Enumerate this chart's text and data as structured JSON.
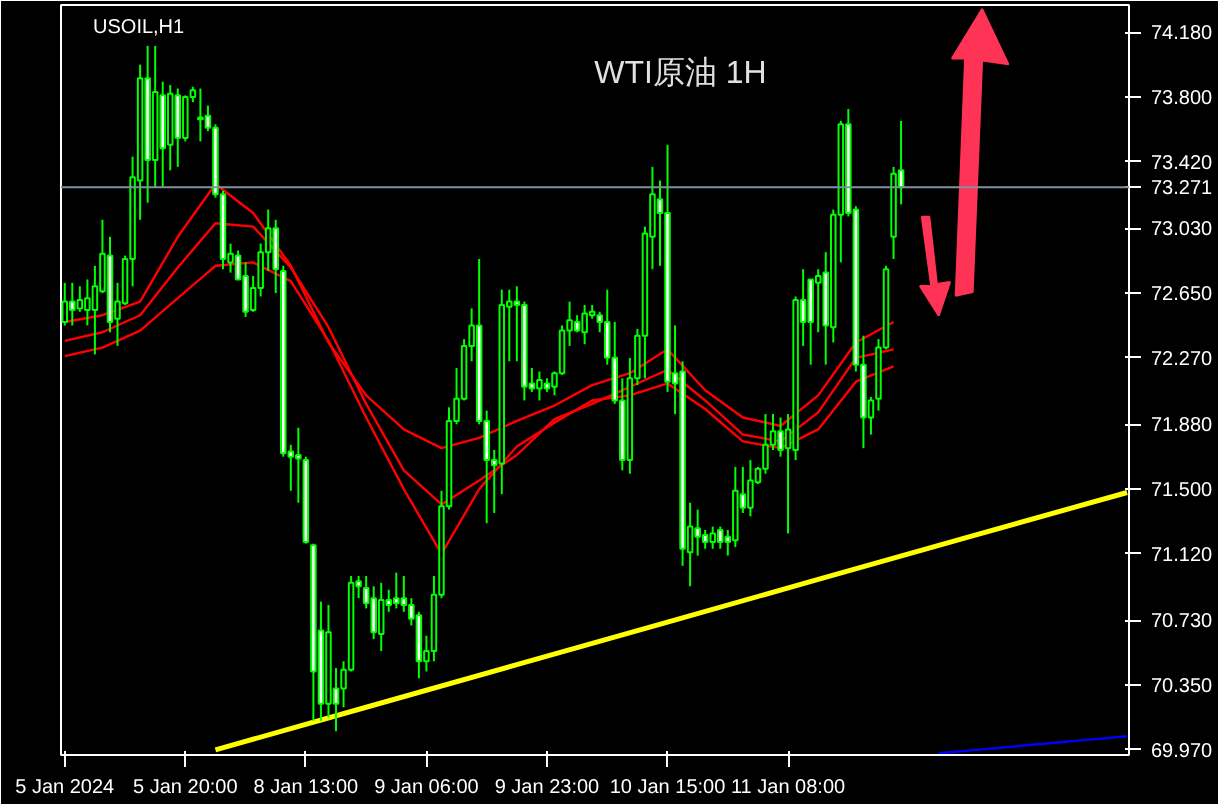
{
  "chart_data": {
    "type": "candlestick",
    "title": "WTI原油 1H",
    "subtitle": "USOIL,H1",
    "categories": [
      "5 Jan 2024",
      null,
      null,
      null,
      null,
      null,
      null,
      null,
      null,
      null,
      null,
      null,
      null,
      null,
      null,
      null,
      "5 Jan 20:00",
      null,
      null,
      null,
      null,
      null,
      null,
      null,
      null,
      null,
      null,
      null,
      null,
      null,
      null,
      null,
      "8 Jan 13:00",
      null,
      null,
      null,
      null,
      null,
      null,
      null,
      null,
      null,
      null,
      null,
      null,
      null,
      null,
      null,
      "9 Jan 06:00",
      null,
      null,
      null,
      null,
      null,
      null,
      null,
      null,
      null,
      null,
      null,
      null,
      null,
      null,
      null,
      "9 Jan 23:00",
      null,
      null,
      null,
      null,
      null,
      null,
      null,
      null,
      null,
      null,
      null,
      null,
      null,
      null,
      null,
      "10 Jan 15:00",
      null,
      null,
      null,
      null,
      null,
      null,
      null,
      null,
      null,
      null,
      null,
      null,
      null,
      null,
      null,
      "11 Jan 08:00",
      null,
      null,
      null,
      null,
      null,
      null,
      null,
      null,
      null,
      null,
      null,
      null,
      null,
      null,
      null,
      null,
      null,
      null,
      null,
      null,
      null,
      null,
      null,
      null,
      null,
      null,
      null,
      null,
      null,
      null,
      null,
      null,
      null,
      null,
      null,
      null,
      null,
      null,
      null,
      null,
      null,
      null,
      null,
      null,
      null
    ],
    "series": [
      {
        "color": "#00ff00",
        "ohlc": [
          [
            72.48,
            72.71,
            72.46,
            72.6
          ],
          [
            72.6,
            72.71,
            72.46,
            72.55
          ],
          [
            72.56,
            72.69,
            72.54,
            72.61
          ],
          [
            72.55,
            72.73,
            72.46,
            72.62
          ],
          [
            72.55,
            72.81,
            72.29,
            72.69
          ],
          [
            72.66,
            73.08,
            72.65,
            72.88
          ],
          [
            72.87,
            72.98,
            72.42,
            72.48
          ],
          [
            72.5,
            72.71,
            72.34,
            72.6
          ],
          [
            72.59,
            72.87,
            72.58,
            72.85
          ],
          [
            72.85,
            73.45,
            72.69,
            73.33
          ],
          [
            73.31,
            73.99,
            73.08,
            73.91
          ],
          [
            73.91,
            74.1,
            73.18,
            73.43
          ],
          [
            73.43,
            74.1,
            73.27,
            73.83
          ],
          [
            73.81,
            73.89,
            73.27,
            73.5
          ],
          [
            73.52,
            73.87,
            73.37,
            73.82
          ],
          [
            73.81,
            73.85,
            73.39,
            73.56
          ],
          [
            73.56,
            73.81,
            73.54,
            73.8
          ],
          [
            73.8,
            73.86,
            73.77,
            73.84
          ],
          [
            73.68,
            73.85,
            73.54,
            73.67
          ],
          [
            73.69,
            73.75,
            73.6,
            73.62
          ],
          [
            73.62,
            73.64,
            73.21,
            73.23
          ],
          [
            73.23,
            73.25,
            72.79,
            72.85
          ],
          [
            72.83,
            72.94,
            72.77,
            72.88
          ],
          [
            72.87,
            72.9,
            72.73,
            72.73
          ],
          [
            72.75,
            72.83,
            72.51,
            72.54
          ],
          [
            72.55,
            72.75,
            72.54,
            72.68
          ],
          [
            72.68,
            72.94,
            72.63,
            72.89
          ],
          [
            72.89,
            73.14,
            72.78,
            73.03
          ],
          [
            73.03,
            73.08,
            72.65,
            72.79
          ],
          [
            72.78,
            72.81,
            71.69,
            71.71
          ],
          [
            71.72,
            71.76,
            71.49,
            71.69
          ],
          [
            71.7,
            71.86,
            71.42,
            71.68
          ],
          [
            71.67,
            71.69,
            71.18,
            71.19
          ],
          [
            71.17,
            71.18,
            70.14,
            70.43
          ],
          [
            70.67,
            70.84,
            70.14,
            70.24
          ],
          [
            70.24,
            70.82,
            70.16,
            70.66
          ],
          [
            70.33,
            70.45,
            70.08,
            70.24
          ],
          [
            70.33,
            70.49,
            70.22,
            70.44
          ],
          [
            70.44,
            70.99,
            70.43,
            70.95
          ],
          [
            70.96,
            70.99,
            70.86,
            70.93
          ],
          [
            70.92,
            70.99,
            70.8,
            70.83
          ],
          [
            70.86,
            70.93,
            70.62,
            70.66
          ],
          [
            70.65,
            70.95,
            70.55,
            70.85
          ],
          [
            70.85,
            70.91,
            70.78,
            70.82
          ],
          [
            70.86,
            71.01,
            70.8,
            70.83
          ],
          [
            70.86,
            70.99,
            70.78,
            70.82
          ],
          [
            70.82,
            70.86,
            70.7,
            70.74
          ],
          [
            70.76,
            70.78,
            70.39,
            70.49
          ],
          [
            70.49,
            70.64,
            70.43,
            70.55
          ],
          [
            70.55,
            70.99,
            70.49,
            70.88
          ],
          [
            70.88,
            71.49,
            70.86,
            71.4
          ],
          [
            71.4,
            71.98,
            71.38,
            71.9
          ],
          [
            71.9,
            72.21,
            71.88,
            72.03
          ],
          [
            72.03,
            72.38,
            72.02,
            72.34
          ],
          [
            72.34,
            72.56,
            72.25,
            72.46
          ],
          [
            72.46,
            72.85,
            71.88,
            71.9
          ],
          [
            71.9,
            71.96,
            71.3,
            71.67
          ],
          [
            71.67,
            71.73,
            71.36,
            71.64
          ],
          [
            71.65,
            72.67,
            71.47,
            72.58
          ],
          [
            72.57,
            72.67,
            72.25,
            72.6
          ],
          [
            72.6,
            72.69,
            72.25,
            72.58
          ],
          [
            72.58,
            72.6,
            72.02,
            72.1
          ],
          [
            72.12,
            72.21,
            72.07,
            72.09
          ],
          [
            72.09,
            72.19,
            72.02,
            72.14
          ],
          [
            72.12,
            72.15,
            72.07,
            72.09
          ],
          [
            72.1,
            72.19,
            72.05,
            72.18
          ],
          [
            72.18,
            72.46,
            72.17,
            72.43
          ],
          [
            72.43,
            72.6,
            72.34,
            72.49
          ],
          [
            72.48,
            72.52,
            72.42,
            72.43
          ],
          [
            72.42,
            72.58,
            72.35,
            72.53
          ],
          [
            72.52,
            72.58,
            72.5,
            72.54
          ],
          [
            72.52,
            72.54,
            72.42,
            72.48
          ],
          [
            72.48,
            72.67,
            72.23,
            72.27
          ],
          [
            72.27,
            72.48,
            72.0,
            72.02
          ],
          [
            72.02,
            72.15,
            71.61,
            71.67
          ],
          [
            71.67,
            72.27,
            71.59,
            72.15
          ],
          [
            72.15,
            72.44,
            72.11,
            72.4
          ],
          [
            72.4,
            73.04,
            72.15,
            73.0
          ],
          [
            72.98,
            73.39,
            72.79,
            73.23
          ],
          [
            73.2,
            73.31,
            72.81,
            73.12
          ],
          [
            73.12,
            73.52,
            72.07,
            72.13
          ],
          [
            72.18,
            72.46,
            71.94,
            72.12
          ],
          [
            72.19,
            72.25,
            71.05,
            71.15
          ],
          [
            71.13,
            71.42,
            70.93,
            71.28
          ],
          [
            71.27,
            71.38,
            71.11,
            71.22
          ],
          [
            71.23,
            71.26,
            71.15,
            71.19
          ],
          [
            71.19,
            71.28,
            71.15,
            71.24
          ],
          [
            71.26,
            71.28,
            71.15,
            71.19
          ],
          [
            71.22,
            71.26,
            71.11,
            71.19
          ],
          [
            71.2,
            71.63,
            71.16,
            71.49
          ],
          [
            71.47,
            71.63,
            71.36,
            71.39
          ],
          [
            71.39,
            71.67,
            71.34,
            71.55
          ],
          [
            71.54,
            71.63,
            71.53,
            71.62
          ],
          [
            71.62,
            71.94,
            71.59,
            71.76
          ],
          [
            71.76,
            71.94,
            71.73,
            71.84
          ],
          [
            71.84,
            71.92,
            71.69,
            71.73
          ],
          [
            71.74,
            71.94,
            71.24,
            71.85
          ],
          [
            71.73,
            72.63,
            71.67,
            72.61
          ],
          [
            72.61,
            72.79,
            72.34,
            72.48
          ],
          [
            72.73,
            72.73,
            72.23,
            72.48
          ],
          [
            72.71,
            72.79,
            72.42,
            72.75
          ],
          [
            72.77,
            72.89,
            72.23,
            72.46
          ],
          [
            72.45,
            73.14,
            72.36,
            73.11
          ],
          [
            73.11,
            73.66,
            72.83,
            73.64
          ],
          [
            73.64,
            73.73,
            73.1,
            73.12
          ],
          [
            73.14,
            73.16,
            72.19,
            72.23
          ],
          [
            72.23,
            72.4,
            71.74,
            71.92
          ],
          [
            71.92,
            72.04,
            71.82,
            72.02
          ],
          [
            72.03,
            72.38,
            71.96,
            72.33
          ],
          [
            72.33,
            72.81,
            72.32,
            72.79
          ],
          [
            72.98,
            73.39,
            72.85,
            73.35
          ],
          [
            73.37,
            73.66,
            73.17,
            73.271
          ],
          null,
          null,
          null,
          null,
          null,
          null,
          null,
          null,
          null,
          null,
          null,
          null,
          null,
          null,
          null,
          null,
          null,
          null,
          null,
          null,
          null,
          null,
          null,
          null,
          null,
          null,
          null,
          null,
          null,
          null
        ]
      },
      {
        "type": "line",
        "color": "#ff0000",
        "values": [
          72.48,
          null,
          null,
          null,
          null,
          72.52,
          null,
          null,
          null,
          null,
          72.6,
          null,
          null,
          null,
          null,
          72.98,
          null,
          null,
          null,
          null,
          73.29,
          null,
          null,
          null,
          null,
          73.12,
          null,
          null,
          null,
          null,
          72.81,
          null,
          null,
          null,
          null,
          72.36,
          null,
          null,
          null,
          null,
          72.05,
          null,
          null,
          null,
          null,
          71.85,
          null,
          null,
          null,
          null,
          71.74,
          null,
          null,
          null,
          null,
          71.8,
          null,
          null,
          null,
          null,
          71.9,
          null,
          null,
          null,
          null,
          71.99,
          null,
          null,
          null,
          null,
          72.11,
          null,
          null,
          null,
          null,
          72.18,
          null,
          null,
          null,
          null,
          72.32,
          null,
          null,
          null,
          null,
          72.08,
          null,
          null,
          null,
          null,
          71.92,
          null,
          null,
          null,
          null,
          71.87,
          null,
          null,
          null,
          null,
          72.05,
          null,
          null,
          null,
          null,
          72.36,
          null,
          null,
          null,
          null,
          72.48,
          null,
          null,
          null,
          null,
          null,
          null,
          null,
          null,
          null,
          null,
          null,
          null,
          null,
          null,
          null,
          null,
          null,
          null,
          null,
          null,
          null,
          null,
          null,
          null,
          null,
          null,
          null,
          null,
          null,
          null,
          null
        ]
      },
      {
        "type": "line",
        "color": "#ff0000",
        "values": [
          72.37,
          null,
          null,
          null,
          null,
          72.42,
          null,
          null,
          null,
          null,
          72.52,
          null,
          null,
          null,
          null,
          72.8,
          null,
          null,
          null,
          null,
          73.06,
          null,
          null,
          null,
          null,
          73.04,
          null,
          null,
          null,
          null,
          72.8,
          null,
          null,
          null,
          null,
          72.45,
          null,
          null,
          null,
          null,
          72.0,
          null,
          null,
          null,
          null,
          71.61,
          null,
          null,
          null,
          null,
          71.41,
          null,
          null,
          null,
          null,
          71.55,
          null,
          null,
          null,
          null,
          71.7,
          null,
          null,
          null,
          null,
          71.91,
          null,
          null,
          null,
          null,
          72.0,
          null,
          null,
          null,
          null,
          72.1,
          null,
          null,
          null,
          null,
          72.2,
          null,
          null,
          null,
          null,
          72.02,
          null,
          null,
          null,
          null,
          71.82,
          null,
          null,
          null,
          null,
          71.78,
          null,
          null,
          null,
          null,
          71.95,
          null,
          null,
          null,
          null,
          72.27,
          null,
          null,
          null,
          null,
          72.32,
          null,
          null,
          null,
          null,
          null,
          null,
          null,
          null,
          null,
          null,
          null,
          null,
          null,
          null,
          null,
          null,
          null,
          null,
          null,
          null,
          null,
          null,
          null,
          null,
          null,
          null,
          null,
          null,
          null,
          null,
          null
        ]
      },
      {
        "type": "line",
        "color": "#ff0000",
        "values": [
          72.28,
          null,
          null,
          null,
          null,
          72.33,
          null,
          null,
          null,
          null,
          72.43,
          null,
          null,
          null,
          null,
          72.62,
          null,
          null,
          null,
          null,
          72.81,
          null,
          null,
          null,
          null,
          72.83,
          null,
          null,
          null,
          null,
          72.72,
          null,
          null,
          null,
          null,
          72.37,
          null,
          null,
          null,
          null,
          71.92,
          null,
          null,
          null,
          null,
          71.5,
          null,
          null,
          null,
          null,
          71.12,
          null,
          null,
          null,
          null,
          71.5,
          null,
          null,
          null,
          null,
          71.75,
          null,
          null,
          null,
          null,
          71.89,
          null,
          null,
          null,
          null,
          72.02,
          null,
          null,
          null,
          null,
          72.05,
          null,
          null,
          null,
          null,
          72.12,
          null,
          null,
          null,
          null,
          71.97,
          null,
          null,
          null,
          null,
          71.78,
          null,
          null,
          null,
          null,
          71.74,
          null,
          null,
          null,
          null,
          71.85,
          null,
          null,
          null,
          null,
          72.13,
          null,
          null,
          null,
          null,
          72.22,
          null,
          null,
          null,
          null,
          null,
          null,
          null,
          null,
          null,
          null,
          null,
          null,
          null,
          null,
          null,
          null,
          null,
          null,
          null,
          null,
          null,
          null,
          null,
          null,
          null,
          null,
          null,
          null,
          null,
          null,
          null
        ]
      },
      {
        "type": "line",
        "color": "#ffff00",
        "values": [
          null,
          null,
          null,
          null,
          null,
          null,
          null,
          null,
          null,
          null,
          null,
          null,
          null,
          null,
          null,
          null,
          null,
          null,
          null,
          null,
          69.97,
          null,
          null,
          null,
          null,
          null,
          null,
          null,
          null,
          null,
          null,
          null,
          null,
          null,
          null,
          null,
          null,
          null,
          null,
          null,
          70.22,
          null,
          null,
          null,
          null,
          null,
          null,
          null,
          null,
          null,
          null,
          null,
          null,
          null,
          null,
          null,
          null,
          null,
          null,
          null,
          70.47,
          null,
          null,
          null,
          null,
          null,
          null,
          null,
          null,
          null,
          null,
          null,
          null,
          null,
          null,
          null,
          null,
          null,
          null,
          null,
          70.72,
          null,
          null,
          null,
          null,
          null,
          null,
          null,
          null,
          null,
          null,
          null,
          null,
          null,
          null,
          null,
          null,
          null,
          null,
          null,
          70.97,
          null,
          null,
          null,
          null,
          null,
          null,
          null,
          null,
          null,
          null,
          null,
          null,
          null,
          null,
          null,
          null,
          null,
          null,
          null,
          71.22,
          null,
          null,
          null,
          null,
          null,
          null,
          null,
          null,
          null,
          null,
          null,
          null,
          null,
          null,
          null,
          null,
          null,
          null,
          null,
          null,
          71.48
        ]
      },
      {
        "type": "line",
        "color": "#0000ff",
        "values": [
          null,
          null,
          null,
          null,
          null,
          null,
          null,
          null,
          null,
          null,
          null,
          null,
          null,
          null,
          null,
          null,
          null,
          null,
          null,
          null,
          null,
          null,
          null,
          null,
          null,
          null,
          null,
          null,
          null,
          null,
          null,
          null,
          null,
          null,
          null,
          null,
          null,
          null,
          null,
          null,
          null,
          null,
          null,
          null,
          null,
          null,
          null,
          null,
          null,
          null,
          null,
          null,
          null,
          null,
          null,
          null,
          null,
          null,
          null,
          null,
          null,
          null,
          null,
          null,
          null,
          null,
          null,
          null,
          null,
          null,
          null,
          null,
          null,
          null,
          null,
          null,
          null,
          null,
          null,
          null,
          null,
          null,
          null,
          null,
          null,
          null,
          null,
          null,
          null,
          null,
          null,
          null,
          null,
          null,
          null,
          null,
          null,
          null,
          null,
          null,
          null,
          null,
          null,
          null,
          null,
          null,
          null,
          null,
          null,
          null,
          null,
          null,
          null,
          null,
          null,
          null,
          69.95,
          null,
          null,
          null,
          null,
          69.97,
          null,
          null,
          null,
          null,
          69.99,
          null,
          null,
          null,
          null,
          70.01,
          null,
          null,
          null,
          null,
          70.03,
          null,
          null,
          null,
          null,
          70.05
        ]
      }
    ],
    "ref_lines": [
      {
        "axis": "y",
        "value": 73.271,
        "label": "73.271",
        "color": "#8090a0"
      }
    ],
    "ylim": [
      69.94,
      74.34
    ],
    "yticks": [
      {
        "value": 74.18,
        "label": "74.180"
      },
      {
        "value": 73.8,
        "label": "73.800"
      },
      {
        "value": 73.42,
        "label": "73.420"
      },
      {
        "value": 73.03,
        "label": "73.030"
      },
      {
        "value": 72.65,
        "label": "72.650"
      },
      {
        "value": 72.27,
        "label": "72.270"
      },
      {
        "value": 71.88,
        "label": "71.880"
      },
      {
        "value": 71.5,
        "label": "71.500"
      },
      {
        "value": 71.12,
        "label": "71.120"
      },
      {
        "value": 70.73,
        "label": "70.730"
      },
      {
        "value": 70.35,
        "label": "70.350"
      },
      {
        "value": 69.97,
        "label": "69.970"
      }
    ]
  }
}
